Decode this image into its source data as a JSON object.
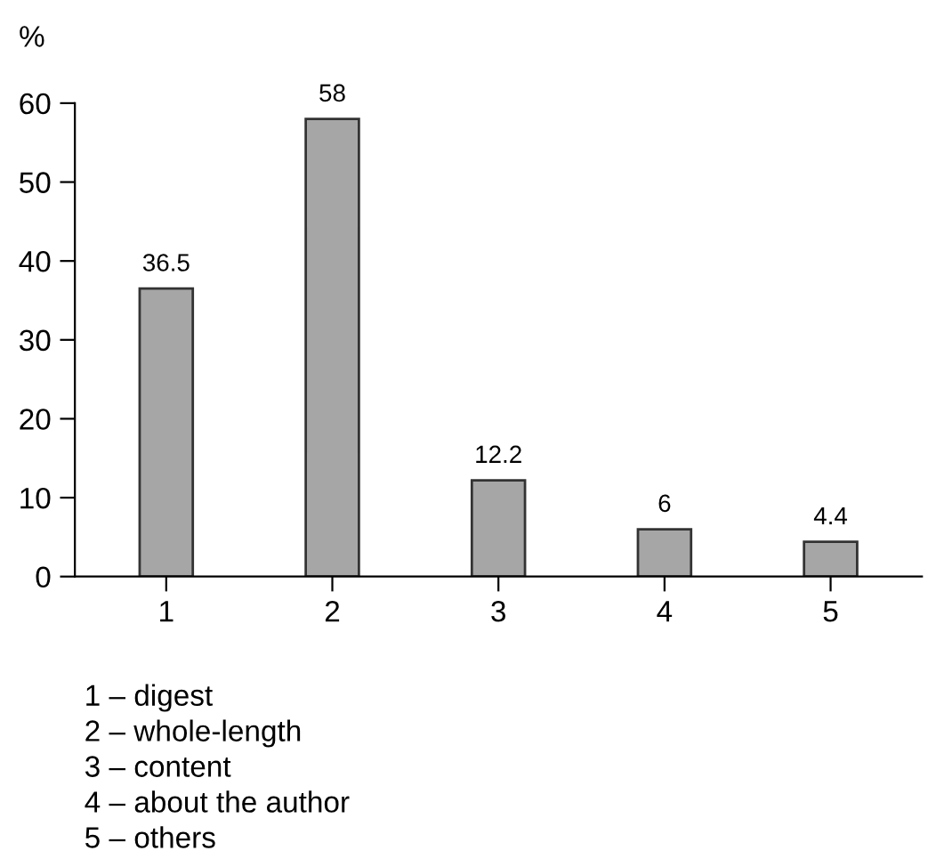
{
  "chart_data": {
    "type": "bar",
    "ylabel": "%",
    "categories": [
      "1",
      "2",
      "3",
      "4",
      "5"
    ],
    "values": [
      36.5,
      58,
      12.2,
      6,
      4.4
    ],
    "color": "#a6a6a6",
    "ylim": [
      0,
      60
    ],
    "yticks": [
      0,
      10,
      20,
      30,
      40,
      50,
      60
    ],
    "data_labels": true,
    "grid": false,
    "legend": false,
    "annotations": [
      "1 – digest",
      "2 – whole-length",
      "3 – content",
      "4 – about the author",
      "5 – others"
    ]
  }
}
